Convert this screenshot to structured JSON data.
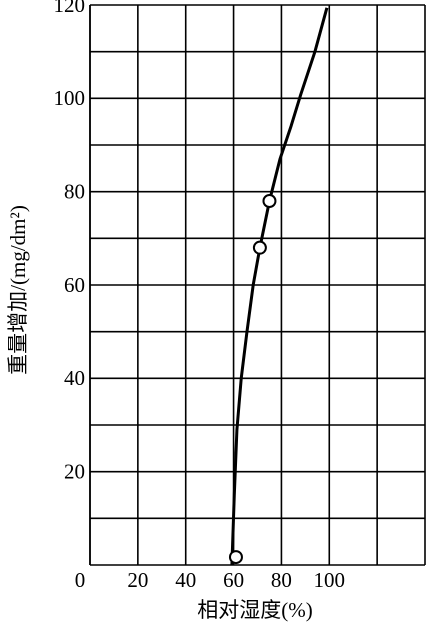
{
  "chart_data": {
    "type": "line",
    "x_label": "相对湿度(%)",
    "y_label": "重量增加/(mg/dm²)",
    "xlim": [
      0,
      140
    ],
    "ylim": [
      0,
      120
    ],
    "xticks": [
      0,
      20,
      40,
      60,
      80,
      100
    ],
    "yticks": [
      20,
      40,
      60,
      80,
      100,
      120
    ],
    "xgrid": [
      0,
      20,
      40,
      60,
      80,
      100,
      120,
      140
    ],
    "ygrid": [
      10,
      20,
      30,
      40,
      50,
      60,
      70,
      80,
      90,
      100,
      110,
      120
    ],
    "color": "#000000",
    "curve": {
      "x": [
        59.3,
        60.3,
        61.4,
        63.2,
        65.6,
        68.2,
        71,
        75,
        79.4,
        84,
        88,
        94,
        99
      ],
      "values": [
        0,
        15,
        29,
        40,
        50,
        60,
        68,
        78,
        87,
        94,
        100.7,
        110,
        119.4
      ]
    },
    "points": {
      "x": [
        61,
        71,
        75
      ],
      "values": [
        1.7,
        68,
        78
      ]
    }
  }
}
